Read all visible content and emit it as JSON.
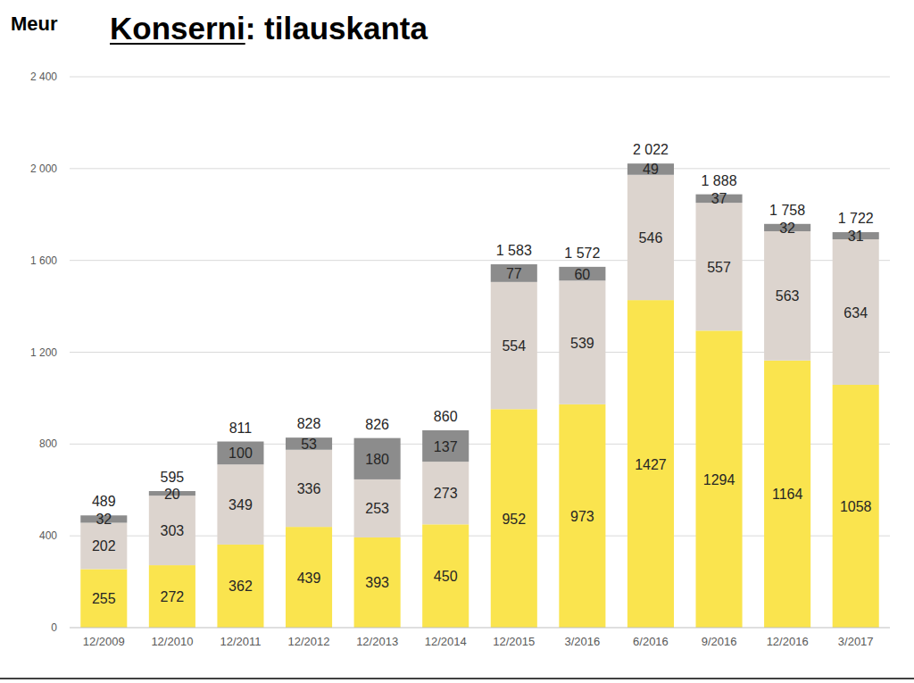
{
  "chart_data": {
    "type": "bar",
    "stacked": true,
    "title": "Konserni: tilauskanta",
    "ylabel": "Meur",
    "categories": [
      "12/2009",
      "12/2010",
      "12/2011",
      "12/2012",
      "12/2013",
      "12/2014",
      "12/2015",
      "3/2016",
      "6/2016",
      "9/2016",
      "12/2016",
      "3/2017"
    ],
    "series": [
      {
        "color": "#fae44e",
        "values": [
          255,
          272,
          362,
          439,
          393,
          450,
          952,
          973,
          1427,
          1294,
          1164,
          1058
        ]
      },
      {
        "color": "#dcd4ce",
        "values": [
          202,
          303,
          349,
          336,
          253,
          273,
          554,
          539,
          546,
          557,
          563,
          634
        ]
      },
      {
        "color": "#8c8c8c",
        "values": [
          32,
          20,
          100,
          53,
          180,
          137,
          77,
          60,
          49,
          37,
          32,
          31
        ]
      }
    ],
    "totals": [
      489,
      595,
      811,
      828,
      826,
      860,
      1583,
      1572,
      2022,
      1888,
      1758,
      1722
    ],
    "total_labels": [
      "489",
      "595",
      "811",
      "828",
      "826",
      "860",
      "1 583",
      "1 572",
      "2 022",
      "1 888",
      "1 758",
      "1 722"
    ],
    "ylim": [
      0,
      2400
    ],
    "yticks": [
      0,
      400,
      800,
      {
        "value": 1200,
        "label": "1 200"
      },
      {
        "value": 1600,
        "label": "1 600"
      },
      {
        "value": 2000,
        "label": "2 000"
      },
      {
        "value": 2400,
        "label": "2 400"
      }
    ],
    "grid": true,
    "data_labels": true
  }
}
